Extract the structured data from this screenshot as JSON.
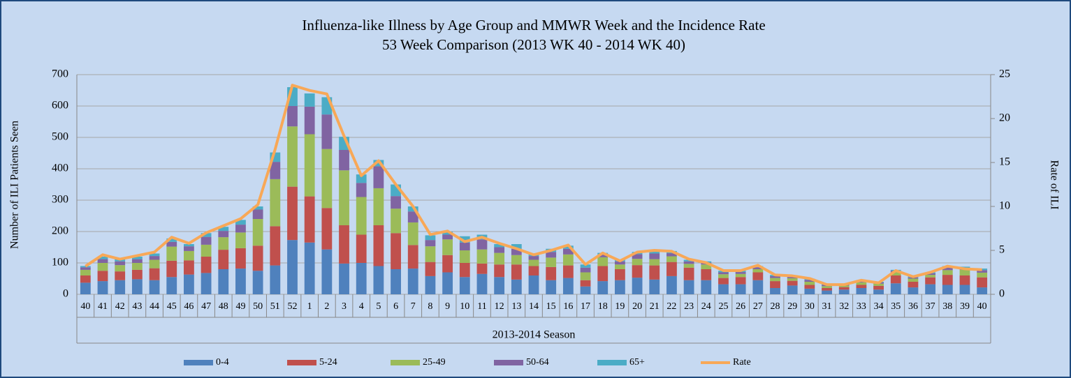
{
  "chart_data": {
    "type": "bar",
    "stacked": true,
    "title": "Influenza-like Illness by Age Group and MMWR Week and the Incidence Rate",
    "subtitle": "53 Week Comparison (2013 WK 40 - 2014 WK 40)",
    "xlabel": "2013-2014 Season",
    "ylabel": "Number of ILI Patients Seen",
    "y2label": "Rate of ILI",
    "categories": [
      "40",
      "41",
      "42",
      "43",
      "44",
      "45",
      "46",
      "47",
      "48",
      "49",
      "50",
      "51",
      "52",
      "1",
      "2",
      "3",
      "4",
      "5",
      "6",
      "7",
      "8",
      "9",
      "10",
      "11",
      "12",
      "13",
      "14",
      "15",
      "16",
      "17",
      "18",
      "19",
      "20",
      "21",
      "22",
      "23",
      "24",
      "25",
      "26",
      "27",
      "28",
      "29",
      "30",
      "31",
      "32",
      "33",
      "34",
      "35",
      "36",
      "37",
      "38",
      "39",
      "40"
    ],
    "series": [
      {
        "name": "0-4",
        "color": "#4f81bd",
        "values": [
          37,
          42,
          45,
          48,
          45,
          55,
          63,
          68,
          80,
          82,
          75,
          92,
          173,
          165,
          143,
          98,
          100,
          90,
          80,
          82,
          58,
          70,
          55,
          65,
          55,
          47,
          60,
          45,
          52,
          25,
          42,
          45,
          53,
          47,
          58,
          45,
          45,
          32,
          32,
          45,
          20,
          28,
          18,
          12,
          15,
          20,
          15,
          35,
          22,
          32,
          30,
          30,
          22
        ]
      },
      {
        "name": "5-24",
        "color": "#c0504d",
        "values": [
          23,
          33,
          28,
          30,
          38,
          52,
          45,
          52,
          62,
          65,
          80,
          125,
          170,
          147,
          132,
          122,
          90,
          130,
          115,
          75,
          45,
          55,
          45,
          33,
          40,
          48,
          30,
          42,
          40,
          20,
          48,
          35,
          40,
          45,
          45,
          40,
          35,
          20,
          23,
          25,
          22,
          15,
          12,
          8,
          8,
          10,
          12,
          25,
          18,
          22,
          32,
          30,
          32
        ]
      },
      {
        "name": "25-49",
        "color": "#9bbb59",
        "values": [
          18,
          25,
          20,
          22,
          27,
          45,
          30,
          38,
          40,
          50,
          85,
          150,
          192,
          198,
          188,
          175,
          120,
          118,
          78,
          72,
          50,
          50,
          40,
          45,
          37,
          30,
          20,
          30,
          35,
          25,
          28,
          15,
          20,
          20,
          18,
          12,
          15,
          12,
          10,
          10,
          10,
          8,
          10,
          6,
          5,
          8,
          7,
          10,
          10,
          8,
          15,
          18,
          15
        ]
      },
      {
        "name": "50-64",
        "color": "#8064a2",
        "values": [
          8,
          12,
          12,
          12,
          12,
          15,
          15,
          25,
          20,
          25,
          30,
          55,
          65,
          88,
          110,
          65,
          45,
          70,
          40,
          35,
          20,
          15,
          25,
          32,
          18,
          20,
          12,
          18,
          18,
          15,
          8,
          10,
          15,
          18,
          10,
          8,
          6,
          6,
          6,
          6,
          6,
          4,
          6,
          4,
          2,
          4,
          4,
          5,
          4,
          5,
          8,
          5,
          8
        ]
      },
      {
        "name": "65+",
        "color": "#4bacc6",
        "values": [
          4,
          8,
          7,
          8,
          8,
          11,
          7,
          12,
          13,
          15,
          10,
          30,
          60,
          42,
          55,
          42,
          27,
          20,
          37,
          16,
          15,
          10,
          20,
          15,
          10,
          15,
          8,
          10,
          10,
          10,
          6,
          5,
          7,
          10,
          7,
          5,
          4,
          5,
          4,
          4,
          4,
          3,
          4,
          2,
          2,
          3,
          2,
          3,
          3,
          3,
          5,
          5,
          5
        ]
      },
      {
        "name": "Rate",
        "color": "#f8a857",
        "axis": "y2",
        "values": [
          3.2,
          4.5,
          4.0,
          4.4,
          4.8,
          6.5,
          5.8,
          7.0,
          7.8,
          8.6,
          10.2,
          16.5,
          23.8,
          23.2,
          22.8,
          18.0,
          13.5,
          15.2,
          12.5,
          10.0,
          6.8,
          7.2,
          6.0,
          6.5,
          5.8,
          5.2,
          4.5,
          5.0,
          5.6,
          3.4,
          4.7,
          3.8,
          4.8,
          5.0,
          4.9,
          4.0,
          3.6,
          2.7,
          2.7,
          3.3,
          2.2,
          2.1,
          1.8,
          1.1,
          1.1,
          1.6,
          1.3,
          2.7,
          2.0,
          2.5,
          3.2,
          2.9,
          2.8
        ]
      }
    ],
    "ylim": [
      0,
      700
    ],
    "yticks": [
      0,
      100,
      200,
      300,
      400,
      500,
      600,
      700
    ],
    "y2lim": [
      0,
      25
    ],
    "y2ticks": [
      0,
      5,
      10,
      15,
      20,
      25
    ],
    "grid": true,
    "legend": "bottom"
  }
}
